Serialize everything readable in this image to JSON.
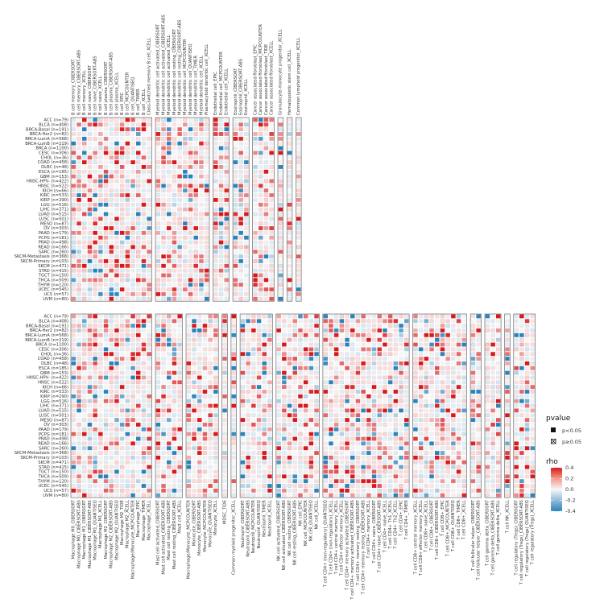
{
  "chart_data": {
    "type": "heatmap",
    "title": "",
    "cancer_types": [
      "ACC (n=79)",
      "BLCA (n=408)",
      "BRCA-Basal (n=191)",
      "BRCA-Her2 (n=82)",
      "BRCA-LumA (n=568)",
      "BRCA-LumB (n=219)",
      "BRCA (n=1100)",
      "CESC (n=306)",
      "CHOL (n=36)",
      "COAD (n=458)",
      "DLBC (n=48)",
      "ESCA (n=185)",
      "GBM (n=153)",
      "HNSC-HPV- (n=422)",
      "HNSC (n=522)",
      "KICH (n=66)",
      "KIRC (n=533)",
      "KIRP (n=290)",
      "LGG (n=516)",
      "LIHC (n=371)",
      "LUAD (n=515)",
      "LUSC (n=501)",
      "MESO (n=87)",
      "OV (n=303)",
      "PAAD (n=179)",
      "PCPG (n=181)",
      "PRAD (n=498)",
      "READ (n=166)",
      "SARC (n=260)",
      "SKCM-Metastasis (n=368)",
      "SKCM-Primary (n=103)",
      "SKCM (n=471)",
      "STAD (n=415)",
      "TGCT (n=150)",
      "THCA (n=509)",
      "THYM (n=120)",
      "UCEC (n=545)",
      "UCS (n=57)",
      "UVM (n=80)"
    ],
    "top_panel": {
      "groups": [
        [
          "B cell memory_CIBERSORT",
          "B cell memory_CIBERSORT-ABS",
          "B cell memory_XCELL",
          "B cell naive_CIBERSORT",
          "B cell naive_CIBERSORT-ABS",
          "B cell naive_XCELL",
          "B cell plasma_CIBERSORT",
          "B cell plasma_CIBERSORT-ABS",
          "B cell plasma_XCELL",
          "B cell_EPIC",
          "B cell_MCPCOUNTER",
          "B cell_QUANTISEQ",
          "B cell_TIMER",
          "B cell_XCELL",
          "Class-switched memory B cell_XCELL"
        ],
        [
          "Myeloid dendritic cell activated_CIBERSORT",
          "Myeloid dendritic cell activated_CIBERSORT-ABS",
          "Myeloid dendritic cell activated_XCELL",
          "Myeloid dendritic cell resting_CIBERSORT",
          "Myeloid dendritic cell resting_CIBERSORT-ABS",
          "Myeloid dendritic cell_MCPCOUNTER",
          "Myeloid dendritic cell_QUANTISEQ",
          "Myeloid dendritic cell_TIMER",
          "Myeloid dendritic cell_XCELL",
          "Plasmacytoid dendritic cell_XCELL"
        ],
        [
          "Endothelial cell_EPIC",
          "Endothelial cell_MCPCOUNTER",
          "Endothelial cell_XCELL"
        ],
        [
          "Eosinophil_CIBERSORT",
          "Eosinophil_CIBERSORT-ABS",
          "Eosinophil_XCELL"
        ],
        [
          "Cancer associated fibroblast_EPIC",
          "Cancer associated fibroblast_MCPCOUNTER",
          "Cancer associated fibroblast_TIDE",
          "Cancer associated fibroblast_XCELL"
        ],
        [
          "Granulocyte-monocyte progenitor_XCELL"
        ],
        [
          "Hematopoietic stem cell_XCELL"
        ],
        [
          "Common lymphoid progenitor_XCELL"
        ]
      ]
    },
    "bottom_panel": {
      "groups": [
        [
          "Macrophage M0_CIBERSORT",
          "Macrophage M0_CIBERSORT-ABS",
          "Macrophage M1_CIBERSORT",
          "Macrophage M1_CIBERSORT-ABS",
          "Macrophage M1_QUANTISEQ",
          "Macrophage M1_XCELL",
          "Macrophage M2_CIBERSORT",
          "Macrophage M2_CIBERSORT-ABS",
          "Macrophage M2_QUANTISEQ",
          "Macrophage M2_TIDE",
          "Macrophage M2_XCELL",
          "Macrophage/Monocyte_MCPCOUNTER",
          "Macrophage_EPIC",
          "Macrophage_TIMER",
          "Macrophage_XCELL"
        ],
        [
          "Mast cell activated_CIBERSORT",
          "Mast cell activated_CIBERSORT-ABS",
          "Mast cell resting_CIBERSORT",
          "Mast cell resting_CIBERSORT-ABS",
          "Mast cell_XCELL"
        ],
        [
          "Macrophage/Monocyte_MCPCOUNTER",
          "Monocyte_CIBERSORT",
          "Monocyte_CIBERSORT-ABS",
          "Monocyte_MCPCOUNTER",
          "Monocyte_QUANTISEQ",
          "Monocyte_XCELL"
        ],
        [
          "MDSC_TIDE"
        ],
        [
          "Common myeloid progenitor_XCELL"
        ],
        [
          "Neutrophil_CIBERSORT",
          "Neutrophil_CIBERSORT-ABS",
          "Neutrophil_MCPCOUNTER",
          "Neutrophil_QUANTISEQ",
          "Neutrophil_TIMER",
          "Neutrophil_XCELL"
        ],
        [
          "NK cell activated_CIBERSORT",
          "NK cell activated_CIBERSORT-ABS",
          "NK cell resting_CIBERSORT",
          "NK cell resting_CIBERSORT-ABS",
          "NK cell_EPIC",
          "NK cell_MCPCOUNTER",
          "NK cell_QUANTISEQ",
          "NK cell_XCELL"
        ],
        [
          "T cell CD4+ (non-regulatory)_QUANTISEQ",
          "T cell CD4+ (non-regulatory)_XCELL",
          "T cell CD4+ central memory_XCELL",
          "T cell CD4+ effector memory_XCELL",
          "T cell CD4+ memory activated_CIBERSORT",
          "T cell CD4+ memory activated_CIBERSORT-ABS",
          "T cell CD4+ memory resting_CIBERSORT",
          "T cell CD4+ memory resting_CIBERSORT-ABS",
          "T cell CD4+ memory_XCELL",
          "T cell CD4+ naive_CIBERSORT",
          "T cell CD4+ naive_CIBERSORT-ABS",
          "T cell CD4+ naive_XCELL",
          "T cell CD4+ Th1_XCELL",
          "T cell CD4+ Th2_XCELL",
          "T cell CD4+_EPIC",
          "T cell CD4+_TIMER"
        ],
        [
          "T cell CD8+ central memory_XCELL",
          "T cell CD8+ effector memory_XCELL",
          "T cell CD8+ naive_XCELL",
          "T cell CD8+_CIBERSORT",
          "T cell CD8+_CIBERSORT-ABS",
          "T cell CD8+_EPIC",
          "T cell CD8+_MCPCOUNTER",
          "T cell CD8+_QUANTISEQ",
          "T cell CD8+_TIMER",
          "T cell CD8+_XCELL"
        ],
        [
          "T cell follicular helper_CIBERSORT",
          "T cell follicular helper_CIBERSORT-ABS"
        ],
        [
          "T cell gamma delta_CIBERSORT",
          "T cell gamma delta_CIBERSORT-ABS",
          "T cell gamma delta_XCELL"
        ],
        [
          "T cell NK_XCELL"
        ],
        [
          "T cell regulatory (Tregs)_CIBERSORT",
          "T cell regulatory (Tregs)_CIBERSORT-ABS",
          "T cell regulatory (Tregs)_QUANTISEQ",
          "T cell regulatory (Tregs)_XCELL"
        ]
      ]
    },
    "legend": {
      "pvalue_title": "pvalue",
      "pvalue_labels": [
        "p<0.05",
        "p≥0.05"
      ],
      "rho_title": "rho",
      "rho_ticks": [
        0.4,
        0.2,
        0.0,
        -0.2,
        -0.4
      ],
      "rho_ticks_text": [
        "0.4",
        "0.2",
        "0.0",
        "-0.2",
        "-0.4"
      ],
      "colors": {
        "negative": "#2b83ba",
        "zero": "#f7f7f7",
        "positive": "#d7191c"
      }
    }
  }
}
